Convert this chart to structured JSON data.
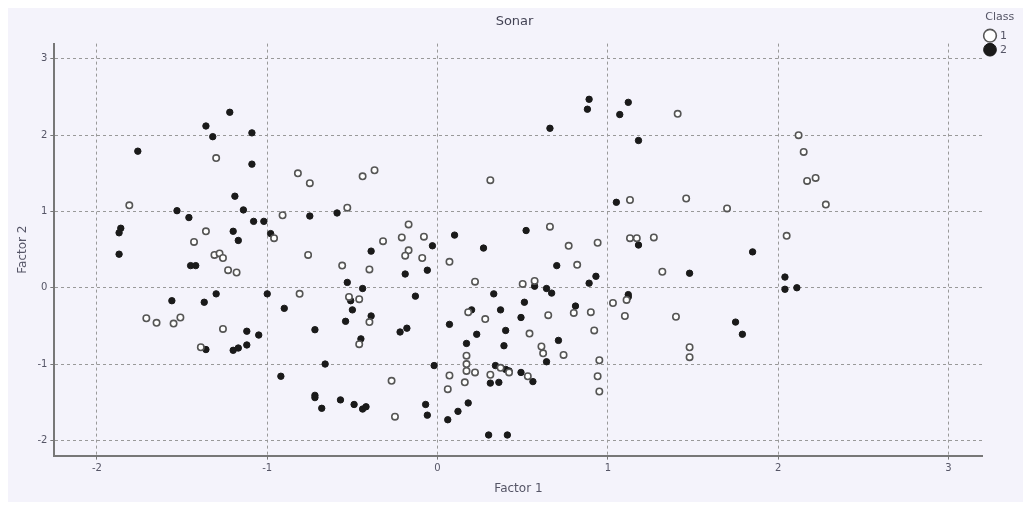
{
  "chart_data": {
    "type": "scatter",
    "title": "Sonar",
    "xlabel": "Factor 1",
    "ylabel": "Factor 2",
    "legend_title": "Class",
    "legend": "top right",
    "grid": true,
    "marker": "circle",
    "xlim": [
      -2.25,
      3.2
    ],
    "ylim": [
      -2.2,
      3.2
    ],
    "xticks": [
      -2,
      -1,
      0,
      1,
      2,
      3
    ],
    "yticks": [
      -2,
      -1,
      0,
      1,
      2,
      3
    ],
    "series": [
      {
        "name": "1",
        "color": "#555555",
        "x": [
          -1.3,
          -1.81,
          -0.82,
          -0.75,
          -0.44,
          -0.37,
          -1.36,
          -1.43,
          -0.96,
          -0.91,
          -0.53,
          0.31,
          1.41,
          1.13,
          1.46,
          -0.17,
          -0.32,
          -0.21,
          -0.08,
          0.66,
          1.13,
          1.17,
          1.27,
          2.12,
          2.15,
          2.17,
          2.22,
          2.28,
          1.7,
          2.05,
          -1.31,
          -1.28,
          -1.26,
          -1.23,
          -1.18,
          -0.76,
          -0.56,
          -0.4,
          -1.71,
          -1.65,
          -1.55,
          -1.51,
          -1.26,
          -1.39,
          -0.81,
          -0.52,
          -0.46,
          -0.4,
          -0.46,
          -0.17,
          -0.19,
          -0.09,
          0.07,
          0.22,
          0.5,
          0.57,
          0.77,
          0.82,
          0.94,
          0.18,
          0.28,
          0.65,
          0.8,
          0.9,
          0.92,
          0.54,
          0.61,
          0.62,
          0.74,
          0.95,
          0.17,
          0.17,
          0.17,
          0.07,
          0.06,
          0.16,
          0.22,
          0.31,
          0.37,
          0.42,
          0.53,
          0.94,
          0.95,
          -0.27,
          -0.25,
          1.03,
          1.1,
          1.11,
          1.32,
          1.4,
          1.48,
          1.48
        ],
        "values": [
          1.7,
          1.08,
          1.5,
          1.37,
          1.46,
          1.54,
          0.74,
          0.6,
          0.65,
          0.95,
          1.05,
          1.41,
          2.28,
          1.15,
          1.17,
          0.83,
          0.61,
          0.66,
          0.67,
          0.8,
          0.65,
          0.65,
          0.66,
          2.0,
          1.78,
          1.4,
          1.44,
          1.09,
          1.04,
          0.68,
          0.43,
          0.45,
          0.39,
          0.23,
          0.2,
          0.43,
          0.29,
          0.24,
          -0.4,
          -0.46,
          -0.47,
          -0.39,
          -0.54,
          -0.78,
          -0.08,
          -0.12,
          -0.15,
          -0.45,
          -0.74,
          0.49,
          0.42,
          0.39,
          0.34,
          0.08,
          0.05,
          0.09,
          0.55,
          0.3,
          0.59,
          -0.32,
          -0.41,
          -0.36,
          -0.33,
          -0.32,
          -0.56,
          -0.6,
          -0.77,
          -0.86,
          -0.88,
          -0.95,
          -0.89,
          -1.0,
          -1.09,
          -1.15,
          -1.33,
          -1.24,
          -1.11,
          -1.14,
          -1.05,
          -1.11,
          -1.16,
          -1.16,
          -1.36,
          -1.22,
          -1.69,
          -0.2,
          -0.37,
          -0.16,
          0.21,
          -0.38,
          -0.78,
          -0.91
        ]
      },
      {
        "name": "2",
        "color": "#1a1a1a",
        "x": [
          -1.22,
          -1.36,
          -1.32,
          -1.09,
          -1.76,
          -1.09,
          -1.19,
          -1.53,
          -1.14,
          -1.46,
          -1.08,
          -1.02,
          -0.75,
          -0.59,
          -1.86,
          -1.87,
          -1.2,
          -1.17,
          -0.98,
          0.89,
          0.88,
          1.12,
          1.07,
          0.66,
          1.18,
          1.05,
          0.52,
          0.1,
          1.18,
          -1.87,
          -1.45,
          -1.42,
          -1.56,
          -1.37,
          -1.3,
          -1.0,
          -0.9,
          -1.12,
          -1.05,
          -1.36,
          -1.2,
          -1.17,
          -1.12,
          -0.92,
          -0.66,
          -0.72,
          -0.72,
          -0.72,
          -0.68,
          -0.57,
          -0.49,
          -0.44,
          -0.42,
          -0.53,
          -0.44,
          -0.51,
          -0.5,
          -0.54,
          -0.39,
          -0.45,
          -0.39,
          -0.03,
          0.27,
          -0.19,
          -0.06,
          -0.13,
          -0.22,
          -0.18,
          -0.02,
          0.07,
          0.17,
          0.23,
          0.33,
          0.37,
          0.4,
          0.39,
          0.51,
          0.49,
          0.57,
          0.64,
          0.67,
          0.7,
          0.89,
          0.93,
          0.81,
          0.71,
          0.64,
          0.34,
          0.4,
          0.42,
          0.49,
          0.56,
          0.31,
          0.36,
          0.18,
          0.12,
          0.06,
          -0.07,
          -0.06,
          0.3,
          0.41,
          1.12,
          1.12,
          1.48,
          0.2,
          1.85,
          2.04,
          2.04,
          2.11,
          1.75,
          1.79
        ],
        "values": [
          2.3,
          2.12,
          1.98,
          2.03,
          1.79,
          1.62,
          1.2,
          1.01,
          1.02,
          0.92,
          0.87,
          0.87,
          0.94,
          0.98,
          0.78,
          0.72,
          0.74,
          0.62,
          0.71,
          2.47,
          2.34,
          2.43,
          2.27,
          2.09,
          1.93,
          1.12,
          0.75,
          0.69,
          0.56,
          0.44,
          0.29,
          0.29,
          -0.17,
          -0.19,
          -0.08,
          -0.08,
          -0.27,
          -0.57,
          -0.62,
          -0.81,
          -0.82,
          -0.79,
          -0.75,
          -1.16,
          -1.0,
          -0.55,
          -1.41,
          -1.44,
          -1.58,
          -1.47,
          -1.53,
          -1.59,
          -1.56,
          0.07,
          -0.01,
          -0.17,
          -0.29,
          -0.44,
          -0.37,
          -0.67,
          0.48,
          0.55,
          0.52,
          0.18,
          0.23,
          -0.11,
          -0.58,
          -0.53,
          -1.02,
          -0.48,
          -0.73,
          -0.61,
          -0.08,
          -0.29,
          -0.56,
          -0.76,
          -0.19,
          -0.39,
          0.02,
          -0.01,
          -0.07,
          0.29,
          0.06,
          0.15,
          -0.24,
          -0.69,
          -0.97,
          -1.02,
          -1.07,
          -1.09,
          -1.11,
          -1.23,
          -1.25,
          -1.24,
          -1.51,
          -1.62,
          -1.73,
          -1.53,
          -1.67,
          -1.93,
          -1.93,
          -0.09,
          -0.12,
          0.19,
          -0.29,
          0.47,
          0.14,
          -0.02,
          0.0,
          -0.45,
          -0.61
        ]
      }
    ]
  }
}
